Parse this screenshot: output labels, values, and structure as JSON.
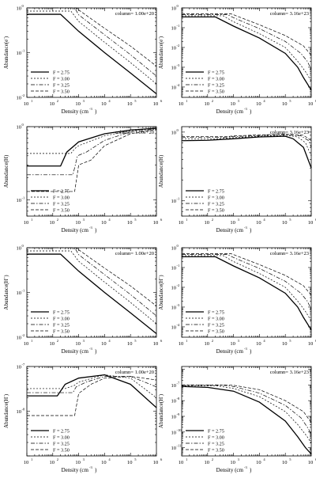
{
  "figure": {
    "x_axis_label_base": "Density (cm",
    "x_axis_label_exp": "-3",
    "x_axis_label_close": ")",
    "x_tick_labels": [
      "10",
      "10",
      "10",
      "10",
      "10",
      "10"
    ],
    "x_tick_exponents": [
      "1",
      "2",
      "3",
      "4",
      "5",
      "6"
    ]
  },
  "legend": {
    "entries": [
      "F = 2.75",
      "F = 3.00",
      "F = 3.25",
      "F = 3.50"
    ]
  },
  "chart_data": [
    {
      "type": "line",
      "row": 0,
      "col": 0,
      "annotation": "column= 1.00e+20",
      "ylabel_base": "Abundance(e",
      "ylabel_sup": "-",
      "ylabel_close": ")",
      "log_x": true,
      "log_y": true,
      "xlim": [
        10,
        1000000
      ],
      "ylim": [
        0.01,
        1.0
      ],
      "y_ticks": [
        {
          "mant": "10",
          "exp": "-2",
          "value": 0.01
        },
        {
          "mant": "10",
          "exp": "-1",
          "value": 0.1
        },
        {
          "mant": "10",
          "exp": "0",
          "value": 1
        }
      ],
      "series": [
        {
          "name": "F = 2.75",
          "x": [
            10,
            200,
            1000,
            10000,
            100000,
            1000000
          ],
          "y": [
            0.72,
            0.72,
            0.3,
            0.1,
            0.035,
            0.012
          ]
        },
        {
          "name": "F = 3.00",
          "x": [
            10,
            500,
            1000,
            10000,
            100000,
            1000000
          ],
          "y": [
            0.85,
            0.85,
            0.5,
            0.17,
            0.06,
            0.02
          ]
        },
        {
          "name": "F = 3.25",
          "x": [
            10,
            700,
            1000,
            10000,
            100000,
            1000000
          ],
          "y": [
            1.0,
            1.0,
            0.7,
            0.25,
            0.09,
            0.03
          ]
        },
        {
          "name": "F = 3.50",
          "x": [
            10,
            800,
            1000,
            10000,
            100000,
            1000000
          ],
          "y": [
            1.0,
            1.0,
            0.9,
            0.35,
            0.14,
            0.05
          ]
        }
      ]
    },
    {
      "type": "line",
      "row": 0,
      "col": 1,
      "annotation": "column= 3.16e+23",
      "ylabel_base": "Abundance(e",
      "ylabel_sup": "-",
      "ylabel_close": ")",
      "log_x": true,
      "log_y": true,
      "xlim": [
        10,
        1000000
      ],
      "ylim": [
        3e-05,
        1.0
      ],
      "y_ticks": [
        {
          "mant": "10",
          "exp": "-4",
          "value": 0.0001
        },
        {
          "mant": "10",
          "exp": "-3",
          "value": 0.001
        },
        {
          "mant": "10",
          "exp": "-2",
          "value": 0.01
        },
        {
          "mant": "10",
          "exp": "-1",
          "value": 0.1
        },
        {
          "mant": "10",
          "exp": "0",
          "value": 1
        }
      ],
      "series": [
        {
          "name": "F = 2.75",
          "x": [
            10,
            200,
            1000,
            10000,
            100000,
            300000,
            500000,
            1000000
          ],
          "y": [
            0.35,
            0.35,
            0.12,
            0.03,
            0.005,
            0.001,
            0.0003,
            7e-05
          ]
        },
        {
          "name": "F = 3.00",
          "x": [
            10,
            400,
            1000,
            10000,
            100000,
            300000,
            600000,
            1000000
          ],
          "y": [
            0.4,
            0.4,
            0.2,
            0.05,
            0.01,
            0.002,
            0.0006,
            0.0002
          ]
        },
        {
          "name": "F = 3.25",
          "x": [
            10,
            600,
            1000,
            10000,
            100000,
            400000,
            700000,
            1000000
          ],
          "y": [
            0.45,
            0.45,
            0.32,
            0.09,
            0.02,
            0.005,
            0.002,
            0.0008
          ]
        },
        {
          "name": "F = 3.50",
          "x": [
            10,
            800,
            1000,
            10000,
            100000,
            500000,
            1000000
          ],
          "y": [
            0.5,
            0.5,
            0.45,
            0.14,
            0.04,
            0.012,
            0.004
          ]
        }
      ]
    },
    {
      "type": "line",
      "row": 1,
      "col": 0,
      "annotation": "column= 1.00e+20",
      "ylabel_base": "Abundance(H)",
      "ylabel_sup": "",
      "ylabel_close": "",
      "log_x": true,
      "log_y": true,
      "xlim": [
        10,
        1000000
      ],
      "ylim": [
        0.06,
        1.0
      ],
      "y_ticks": [
        {
          "mant": "10",
          "exp": "-1",
          "value": 0.1
        },
        {
          "mant": "10",
          "exp": "0",
          "value": 1
        }
      ],
      "series": [
        {
          "name": "F = 2.75",
          "x": [
            10,
            200,
            350,
            1000,
            10000,
            100000,
            1000000
          ],
          "y": [
            0.29,
            0.29,
            0.45,
            0.62,
            0.8,
            0.9,
            0.95
          ]
        },
        {
          "name": "F = 3.00",
          "x": [
            10,
            500,
            700,
            1000,
            10000,
            100000,
            1000000
          ],
          "y": [
            0.43,
            0.43,
            0.5,
            0.55,
            0.75,
            0.88,
            0.95
          ]
        },
        {
          "name": "F = 3.25",
          "x": [
            10,
            600,
            900,
            2000,
            10000,
            100000,
            1000000
          ],
          "y": [
            0.22,
            0.22,
            0.4,
            0.45,
            0.65,
            0.85,
            0.93
          ]
        },
        {
          "name": "F = 3.50",
          "x": [
            10,
            700,
            1000,
            3000,
            10000,
            100000,
            1000000
          ],
          "y": [
            0.13,
            0.13,
            0.3,
            0.35,
            0.55,
            0.8,
            0.92
          ]
        }
      ]
    },
    {
      "type": "line",
      "row": 1,
      "col": 1,
      "annotation": "column= 3.16e+23",
      "ylabel_base": "Abundance(H)",
      "ylabel_sup": "",
      "ylabel_close": "",
      "log_x": true,
      "log_y": true,
      "xlim": [
        10,
        1000000
      ],
      "ylim": [
        0.06,
        1.2
      ],
      "y_ticks": [
        {
          "mant": "10",
          "exp": "-1",
          "value": 0.1
        },
        {
          "mant": "10",
          "exp": "0",
          "value": 1
        }
      ],
      "series": [
        {
          "name": "F = 2.75",
          "x": [
            10,
            100,
            1000,
            10000,
            100000,
            200000,
            500000,
            1000000
          ],
          "y": [
            0.75,
            0.76,
            0.8,
            0.85,
            0.87,
            0.8,
            0.6,
            0.3
          ]
        },
        {
          "name": "F = 3.00",
          "x": [
            10,
            200,
            1000,
            10000,
            100000,
            300000,
            600000,
            1000000
          ],
          "y": [
            0.8,
            0.8,
            0.83,
            0.87,
            0.9,
            0.85,
            0.7,
            0.45
          ]
        },
        {
          "name": "F = 3.25",
          "x": [
            10,
            400,
            1000,
            10000,
            100000,
            400000,
            800000,
            1000000
          ],
          "y": [
            0.84,
            0.84,
            0.86,
            0.89,
            0.92,
            0.88,
            0.75,
            0.6
          ]
        },
        {
          "name": "F = 3.50",
          "x": [
            10,
            600,
            1000,
            10000,
            100000,
            500000,
            1000000
          ],
          "y": [
            0.86,
            0.86,
            0.88,
            0.91,
            0.93,
            0.9,
            0.75
          ]
        }
      ]
    },
    {
      "type": "line",
      "row": 2,
      "col": 0,
      "annotation": "column= 1.00e+20",
      "ylabel_base": "Abundance(H",
      "ylabel_sup": "+",
      "ylabel_close": ")",
      "log_x": true,
      "log_y": true,
      "xlim": [
        10,
        1000000
      ],
      "ylim": [
        0.01,
        1.0
      ],
      "y_ticks": [
        {
          "mant": "10",
          "exp": "-2",
          "value": 0.01
        },
        {
          "mant": "10",
          "exp": "-1",
          "value": 0.1
        },
        {
          "mant": "10",
          "exp": "0",
          "value": 1
        }
      ],
      "series": [
        {
          "name": "F = 2.75",
          "x": [
            10,
            200,
            1000,
            10000,
            100000,
            1000000
          ],
          "y": [
            0.72,
            0.72,
            0.3,
            0.1,
            0.035,
            0.012
          ]
        },
        {
          "name": "F = 3.00",
          "x": [
            10,
            500,
            1000,
            10000,
            100000,
            1000000
          ],
          "y": [
            0.85,
            0.85,
            0.5,
            0.17,
            0.06,
            0.02
          ]
        },
        {
          "name": "F = 3.25",
          "x": [
            10,
            700,
            1000,
            10000,
            100000,
            1000000
          ],
          "y": [
            1.0,
            1.0,
            0.7,
            0.25,
            0.09,
            0.03
          ]
        },
        {
          "name": "F = 3.50",
          "x": [
            10,
            800,
            1000,
            10000,
            100000,
            1000000
          ],
          "y": [
            1.0,
            1.0,
            0.9,
            0.35,
            0.14,
            0.05
          ]
        }
      ]
    },
    {
      "type": "line",
      "row": 2,
      "col": 1,
      "annotation": "column= 3.16e+23",
      "ylabel_base": "Abundance(H",
      "ylabel_sup": "+",
      "ylabel_close": ")",
      "log_x": true,
      "log_y": true,
      "xlim": [
        10,
        1000000
      ],
      "ylim": [
        3e-05,
        1.0
      ],
      "y_ticks": [
        {
          "mant": "10",
          "exp": "-4",
          "value": 0.0001
        },
        {
          "mant": "10",
          "exp": "-3",
          "value": 0.001
        },
        {
          "mant": "10",
          "exp": "-2",
          "value": 0.01
        },
        {
          "mant": "10",
          "exp": "-1",
          "value": 0.1
        },
        {
          "mant": "10",
          "exp": "0",
          "value": 1
        }
      ],
      "series": [
        {
          "name": "F = 2.75",
          "x": [
            10,
            200,
            1000,
            10000,
            100000,
            300000,
            500000,
            1000000
          ],
          "y": [
            0.35,
            0.35,
            0.12,
            0.03,
            0.005,
            0.001,
            0.0003,
            7e-05
          ]
        },
        {
          "name": "F = 3.00",
          "x": [
            10,
            400,
            1000,
            10000,
            100000,
            300000,
            600000,
            1000000
          ],
          "y": [
            0.4,
            0.4,
            0.2,
            0.05,
            0.01,
            0.002,
            0.0006,
            0.0002
          ]
        },
        {
          "name": "F = 3.25",
          "x": [
            10,
            600,
            1000,
            10000,
            100000,
            400000,
            700000,
            1000000
          ],
          "y": [
            0.45,
            0.45,
            0.32,
            0.09,
            0.02,
            0.005,
            0.002,
            0.0008
          ]
        },
        {
          "name": "F = 3.50",
          "x": [
            10,
            800,
            1000,
            10000,
            100000,
            500000,
            1000000
          ],
          "y": [
            0.5,
            0.5,
            0.45,
            0.14,
            0.04,
            0.012,
            0.004
          ]
        }
      ]
    },
    {
      "type": "line",
      "row": 3,
      "col": 0,
      "annotation": "column= 1.00e+20",
      "ylabel_base": "Abundance(H",
      "ylabel_sup": "-",
      "ylabel_close": ")",
      "log_x": true,
      "log_y": true,
      "xlim": [
        10,
        1000000
      ],
      "ylim": [
        1e-09,
        1e-07
      ],
      "y_ticks": [
        {
          "mant": "10",
          "exp": "-8",
          "value": 1e-08
        },
        {
          "mant": "10",
          "exp": "-7",
          "value": 1e-07
        }
      ],
      "series": [
        {
          "name": "F = 2.75",
          "x": [
            10,
            150,
            300,
            1000,
            10000,
            100000,
            1000000
          ],
          "y": [
            2.2e-08,
            2.2e-08,
            4e-08,
            5.5e-08,
            6.5e-08,
            4e-08,
            1.2e-08
          ]
        },
        {
          "name": "F = 3.00",
          "x": [
            10,
            300,
            700,
            1000,
            10000,
            100000,
            1000000
          ],
          "y": [
            3.2e-08,
            3.2e-08,
            3.8e-08,
            4.5e-08,
            6.5e-08,
            5.5e-08,
            2e-08
          ]
        },
        {
          "name": "F = 3.25",
          "x": [
            10,
            600,
            800,
            2000,
            10000,
            100000,
            1000000
          ],
          "y": [
            2.6e-08,
            2.6e-08,
            3.5e-08,
            4.5e-08,
            6e-08,
            6e-08,
            3.5e-08
          ]
        },
        {
          "name": "F = 3.50",
          "x": [
            10,
            700,
            1000,
            3000,
            10000,
            100000,
            1000000
          ],
          "y": [
            8e-09,
            8e-09,
            2.5e-08,
            4e-08,
            5.5e-08,
            6e-08,
            5e-08
          ]
        }
      ]
    },
    {
      "type": "line",
      "row": 3,
      "col": 1,
      "annotation": "column= 3.16e+23",
      "ylabel_base": "Abundance(H",
      "ylabel_sup": "-",
      "ylabel_close": ")",
      "log_x": true,
      "log_y": true,
      "xlim": [
        10,
        1000000
      ],
      "ylim": [
        3e-12,
        1.5e-06
      ],
      "y_ticks": [
        {
          "mant": "10",
          "exp": "-11",
          "value": 1e-11
        },
        {
          "mant": "10",
          "exp": "-10",
          "value": 1e-10
        },
        {
          "mant": "10",
          "exp": "-9",
          "value": 1e-09
        },
        {
          "mant": "10",
          "exp": "-8",
          "value": 1e-08
        },
        {
          "mant": "10",
          "exp": "-7",
          "value": 1e-07
        }
      ],
      "series": [
        {
          "name": "F = 2.75",
          "x": [
            10,
            100,
            1000,
            10000,
            100000,
            300000,
            600000,
            1000000
          ],
          "y": [
            8e-08,
            7e-08,
            4e-08,
            8e-09,
            5e-10,
            5e-11,
            1e-11,
            4e-12
          ]
        },
        {
          "name": "F = 3.00",
          "x": [
            10,
            200,
            1000,
            10000,
            100000,
            300000,
            700000,
            1000000
          ],
          "y": [
            9e-08,
            9e-08,
            6e-08,
            1.8e-08,
            2e-09,
            3e-10,
            5e-11,
            2e-11
          ]
        },
        {
          "name": "F = 3.25",
          "x": [
            10,
            400,
            1000,
            10000,
            100000,
            400000,
            800000,
            1000000
          ],
          "y": [
            9.5e-08,
            9.5e-08,
            8e-08,
            3e-08,
            5e-09,
            8e-10,
            1.5e-10,
            6e-11
          ]
        },
        {
          "name": "F = 3.50",
          "x": [
            10,
            600,
            1000,
            10000,
            100000,
            500000,
            1000000
          ],
          "y": [
            1e-07,
            1e-07,
            9.5e-08,
            5e-08,
            1e-08,
            2e-09,
            4e-10
          ]
        }
      ]
    }
  ]
}
